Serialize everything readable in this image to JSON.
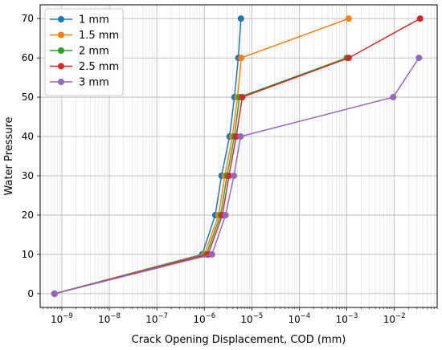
{
  "chart_data": {
    "type": "line",
    "xlabel": "Crack Opening Displacement, COD (mm)",
    "ylabel": "Water Pressure",
    "xscale": "log",
    "xlim": [
      3.5e-10,
      0.08
    ],
    "ylim": [
      -3.5,
      73.5
    ],
    "yticks": [
      0,
      10,
      20,
      30,
      40,
      50,
      60,
      70
    ],
    "xticks": [
      {
        "value": 1e-09,
        "base": "10",
        "exp": "−9"
      },
      {
        "value": 1e-08,
        "base": "10",
        "exp": "−8"
      },
      {
        "value": 1e-07,
        "base": "10",
        "exp": "−7"
      },
      {
        "value": 1e-06,
        "base": "10",
        "exp": "−6"
      },
      {
        "value": 1e-05,
        "base": "10",
        "exp": "−5"
      },
      {
        "value": 0.0001,
        "base": "10",
        "exp": "−4"
      },
      {
        "value": 0.001,
        "base": "10",
        "exp": "−3"
      },
      {
        "value": 0.01,
        "base": "10",
        "exp": "−2"
      }
    ],
    "grid": "major and minor",
    "legend_position": "top-left",
    "series": [
      {
        "name": "1 mm",
        "color": "#1f77b4",
        "points": [
          [
            7e-10,
            0
          ],
          [
            9e-07,
            10
          ],
          [
            1.7e-06,
            20
          ],
          [
            2.3e-06,
            30
          ],
          [
            3.4e-06,
            40
          ],
          [
            4.3e-06,
            50
          ],
          [
            5.2e-06,
            60
          ],
          [
            5.9e-06,
            70
          ]
        ]
      },
      {
        "name": "1.5 mm",
        "color": "#ff7f0e",
        "points": [
          [
            7e-10,
            0
          ],
          [
            1e-06,
            10
          ],
          [
            2e-06,
            20
          ],
          [
            2.7e-06,
            30
          ],
          [
            3.9e-06,
            40
          ],
          [
            5e-06,
            50
          ],
          [
            6e-06,
            60
          ],
          [
            0.0011,
            70
          ]
        ]
      },
      {
        "name": "2 mm",
        "color": "#2ca02c",
        "points": [
          [
            7e-10,
            0
          ],
          [
            1.1e-06,
            10
          ],
          [
            2.2e-06,
            20
          ],
          [
            3e-06,
            30
          ],
          [
            4.3e-06,
            40
          ],
          [
            5.5e-06,
            50
          ],
          [
            0.001,
            60
          ]
        ]
      },
      {
        "name": "2.5 mm",
        "color": "#d62728",
        "points": [
          [
            7e-10,
            0
          ],
          [
            1.2e-06,
            10
          ],
          [
            2.4e-06,
            20
          ],
          [
            3.3e-06,
            30
          ],
          [
            4.7e-06,
            40
          ],
          [
            6.3e-06,
            50
          ],
          [
            0.0011,
            60
          ],
          [
            0.035,
            70
          ]
        ]
      },
      {
        "name": "3 mm",
        "color": "#9467bd",
        "points": [
          [
            7e-10,
            0
          ],
          [
            1.45e-06,
            10
          ],
          [
            2.8e-06,
            20
          ],
          [
            4.2e-06,
            30
          ],
          [
            5.8e-06,
            40
          ],
          [
            0.0095,
            50
          ],
          [
            0.033,
            60
          ]
        ]
      }
    ]
  }
}
